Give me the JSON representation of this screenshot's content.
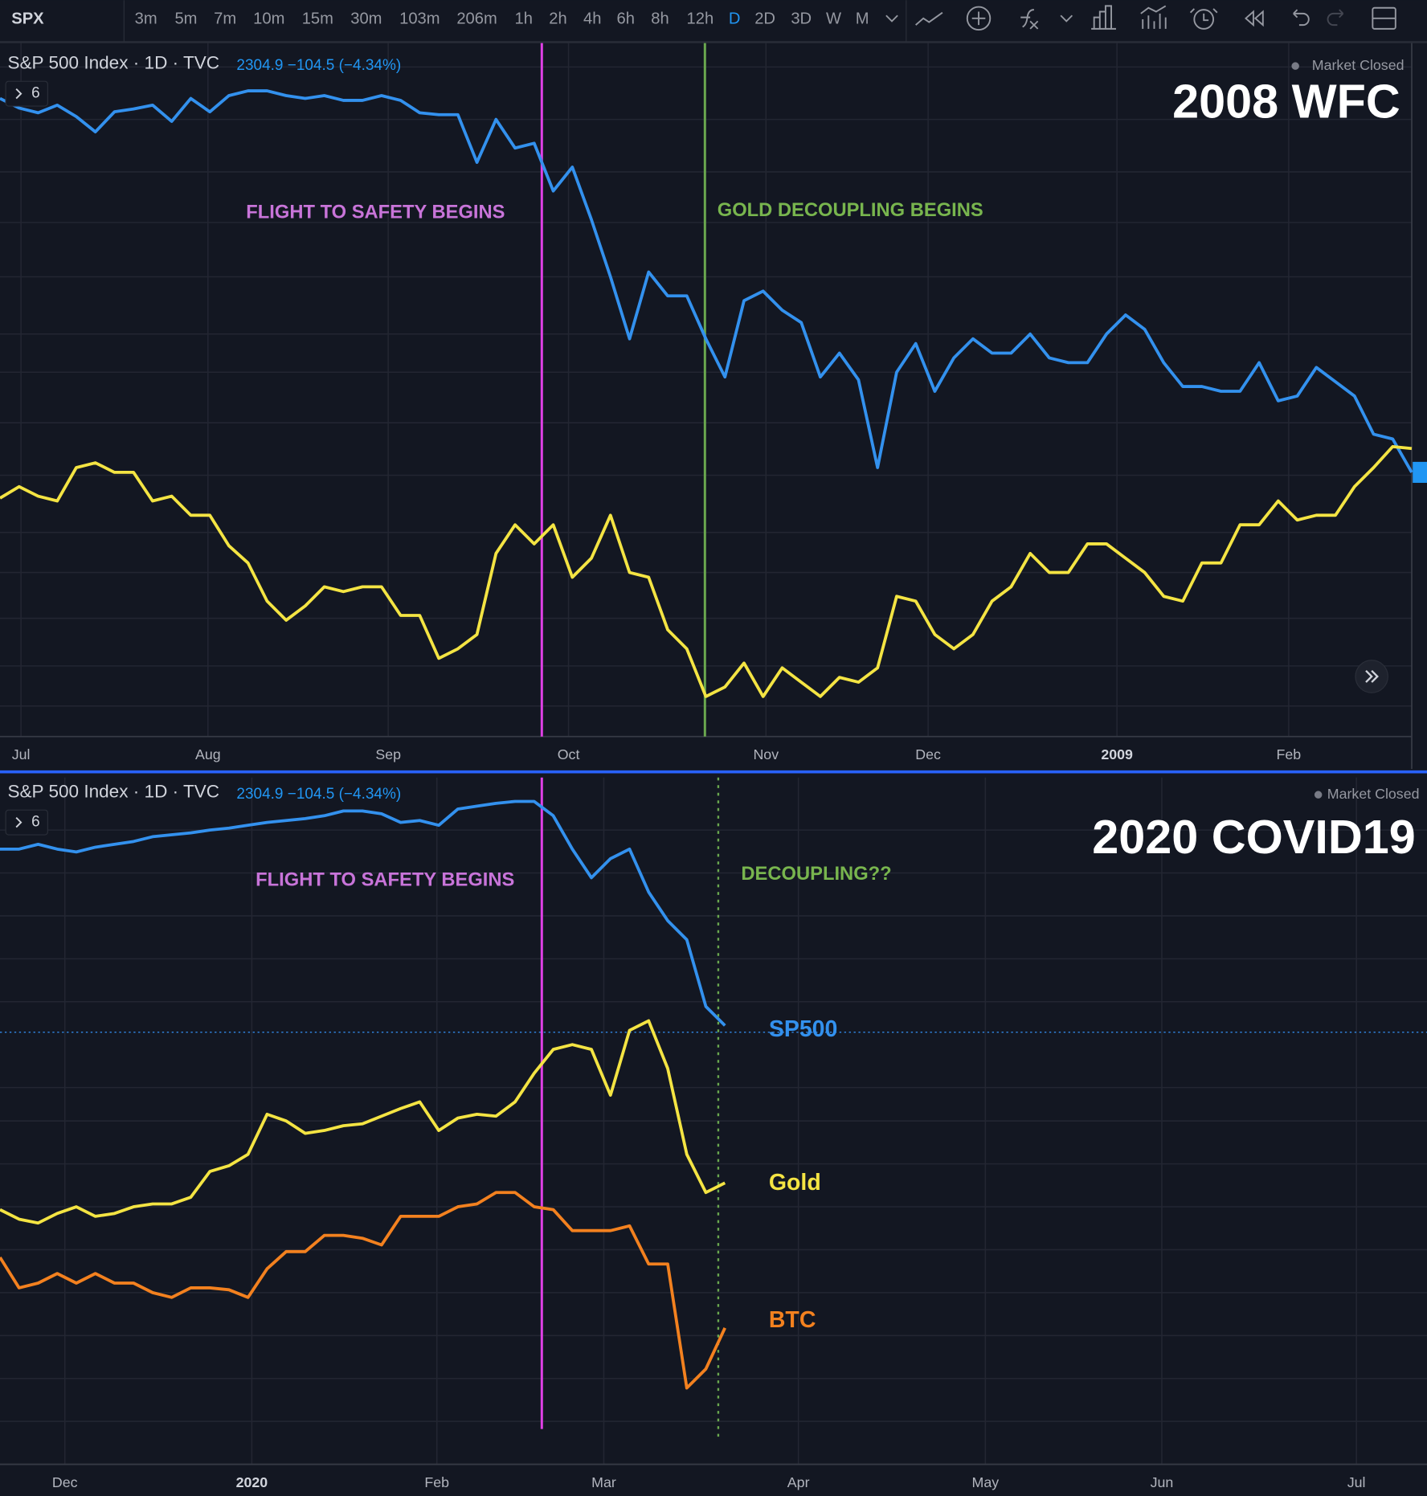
{
  "toolbar": {
    "symbol": "SPX",
    "intervals": [
      "3m",
      "5m",
      "7m",
      "10m",
      "15m",
      "30m",
      "103m",
      "206m",
      "1h",
      "2h",
      "4h",
      "6h",
      "8h",
      "12h",
      "D",
      "2D",
      "3D",
      "W",
      "M"
    ],
    "active_interval": "D"
  },
  "chart_data": [
    {
      "type": "line",
      "title": "2008 WFC",
      "legend": {
        "name": "S&P 500 Index · 1D · TVC",
        "quote": "2304.9 −104.5 (−4.34%)",
        "status": "Market Closed",
        "indicators": "6"
      },
      "annotations": [
        "FLIGHT TO SAFETY BEGINS",
        "GOLD DECOUPLING BEGINS"
      ],
      "xtick_labels": [
        "Jul",
        "Aug",
        "Sep",
        "Oct",
        "Nov",
        "Dec",
        "2009",
        "Feb"
      ],
      "series": [
        {
          "color": "#3391ee",
          "values": [
            697,
            687,
            682,
            690,
            678,
            662,
            683,
            686,
            690,
            673,
            697,
            683,
            700,
            705,
            705,
            700,
            697,
            700,
            695,
            695,
            700,
            695,
            682,
            680,
            680,
            630,
            675,
            645,
            650,
            600,
            625,
            570,
            510,
            445,
            515,
            490,
            490,
            445,
            405,
            485,
            495,
            475,
            462,
            405,
            430,
            402,
            310,
            410,
            440,
            390,
            425,
            445,
            430,
            430,
            450,
            425,
            420,
            420,
            450,
            470,
            455,
            420,
            395,
            395,
            390,
            390,
            420,
            380,
            385,
            415,
            400,
            385,
            345,
            340,
            305
          ]
        },
        {
          "color": "#f4e443",
          "values": [
            278,
            290,
            280,
            275,
            310,
            315,
            305,
            305,
            275,
            280,
            260,
            260,
            228,
            210,
            170,
            150,
            165,
            185,
            180,
            185,
            185,
            155,
            155,
            110,
            120,
            135,
            220,
            250,
            230,
            250,
            195,
            215,
            260,
            200,
            195,
            140,
            120,
            70,
            80,
            105,
            70,
            100,
            85,
            70,
            90,
            85,
            100,
            175,
            170,
            135,
            120,
            135,
            170,
            185,
            220,
            200,
            200,
            230,
            230,
            215,
            200,
            175,
            170,
            210,
            210,
            250,
            250,
            275,
            255,
            260,
            260,
            290,
            310,
            332,
            330
          ]
        }
      ]
    },
    {
      "type": "line",
      "title": "2020 COVID19",
      "legend": {
        "name": "S&P 500 Index · 1D · TVC",
        "quote": "2304.9 −104.5 (−4.34%)",
        "status": "Market Closed",
        "indicators": "6"
      },
      "annotations": [
        "FLIGHT TO SAFETY BEGINS",
        "DECOUPLING??"
      ],
      "xtick_labels": [
        "Dec",
        "2020",
        "Feb",
        "Mar",
        "Apr",
        "May",
        "Jun",
        "Jul"
      ],
      "series": [
        {
          "name": "SP500",
          "color": "#3391ee",
          "values": [
            710,
            710,
            715,
            710,
            707,
            712,
            715,
            718,
            723,
            725,
            727,
            730,
            732,
            735,
            738,
            740,
            742,
            745,
            750,
            750,
            747,
            738,
            740,
            735,
            752,
            755,
            758,
            760,
            760,
            745,
            710,
            680,
            700,
            710,
            665,
            635,
            615,
            545,
            525
          ]
        },
        {
          "name": "Gold",
          "color": "#f4e443",
          "values": [
            332,
            322,
            318,
            328,
            335,
            325,
            328,
            335,
            338,
            338,
            345,
            372,
            378,
            390,
            432,
            425,
            412,
            415,
            420,
            422,
            430,
            438,
            445,
            415,
            428,
            432,
            430,
            445,
            475,
            500,
            505,
            500,
            452,
            520,
            530,
            480,
            390,
            350,
            360
          ]
        },
        {
          "name": "BTC",
          "color": "#f3811f",
          "values": [
            282,
            250,
            255,
            265,
            255,
            265,
            255,
            255,
            245,
            240,
            250,
            250,
            248,
            240,
            270,
            288,
            288,
            305,
            305,
            302,
            295,
            325,
            325,
            325,
            335,
            338,
            350,
            350,
            335,
            332,
            310,
            310,
            310,
            315,
            275,
            275,
            145,
            165,
            208
          ]
        }
      ]
    }
  ]
}
